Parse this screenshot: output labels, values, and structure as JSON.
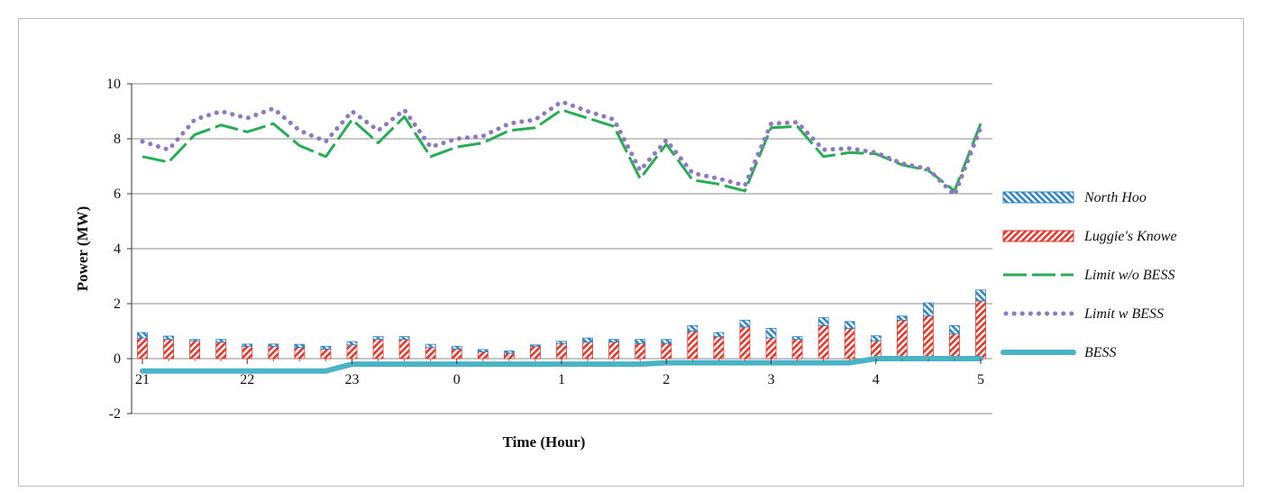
{
  "chart_data": {
    "type": "bar+line",
    "xlabel": "Time (Hour)",
    "ylabel": "Power (MW)",
    "ylim": [
      -2,
      10
    ],
    "yticks": [
      -2,
      0,
      2,
      4,
      6,
      8,
      10
    ],
    "xticks": [
      {
        "t": 0,
        "label": "21"
      },
      {
        "t": 1,
        "label": "22"
      },
      {
        "t": 2,
        "label": "23"
      },
      {
        "t": 3,
        "label": "0"
      },
      {
        "t": 4,
        "label": "1"
      },
      {
        "t": 5,
        "label": "2"
      },
      {
        "t": 6,
        "label": "3"
      },
      {
        "t": 7,
        "label": "4"
      },
      {
        "t": 8,
        "label": "5"
      }
    ],
    "xlim": [
      0,
      8
    ],
    "grid": true,
    "legend_position": "right",
    "colors": {
      "north_hoo": "#2f84c6",
      "luggies_knowe": "#e8362b",
      "limit_wo_bess": "#26ad55",
      "limit_w_bess": "#8e79c2",
      "bess": "#4bb3c6",
      "grid": "#8c8c8c"
    },
    "legend": [
      {
        "key": "north_hoo",
        "name": "North Hoo",
        "style": "hatch-blue"
      },
      {
        "key": "luggies_knowe",
        "name": "Luggie's Knowe",
        "style": "hatch-red"
      },
      {
        "key": "limit_wo_bess",
        "name": "Limit w/o BESS",
        "style": "dash"
      },
      {
        "key": "limit_w_bess",
        "name": "Limit w BESS",
        "style": "dot"
      },
      {
        "key": "bess",
        "name": "BESS",
        "style": "thick"
      }
    ],
    "time": [
      0,
      0.25,
      0.5,
      0.75,
      1,
      1.25,
      1.5,
      1.75,
      2,
      2.25,
      2.5,
      2.75,
      3,
      3.25,
      3.5,
      3.75,
      4,
      4.25,
      4.5,
      4.75,
      5,
      5.25,
      5.5,
      5.75,
      6,
      6.25,
      6.5,
      6.75,
      7,
      7.25,
      7.5,
      7.75,
      8
    ],
    "luggies_knowe": [
      0.75,
      0.7,
      0.65,
      0.6,
      0.45,
      0.45,
      0.4,
      0.35,
      0.5,
      0.7,
      0.7,
      0.4,
      0.35,
      0.25,
      0.2,
      0.45,
      0.55,
      0.6,
      0.6,
      0.55,
      0.55,
      1.0,
      0.8,
      1.15,
      0.75,
      0.7,
      1.2,
      1.1,
      0.65,
      1.4,
      1.55,
      0.9,
      2.1
    ],
    "north_hoo": [
      0.2,
      0.12,
      0.05,
      0.1,
      0.08,
      0.08,
      0.12,
      0.1,
      0.12,
      0.1,
      0.1,
      0.12,
      0.1,
      0.08,
      0.08,
      0.05,
      0.08,
      0.15,
      0.1,
      0.15,
      0.15,
      0.2,
      0.15,
      0.25,
      0.35,
      0.1,
      0.3,
      0.25,
      0.18,
      0.15,
      0.48,
      0.3,
      0.4
    ],
    "limit_wo_bess": [
      7.35,
      7.15,
      8.15,
      8.5,
      8.25,
      8.55,
      7.75,
      7.35,
      8.7,
      7.85,
      8.8,
      7.35,
      7.7,
      7.85,
      8.3,
      8.4,
      9.05,
      8.75,
      8.45,
      6.55,
      7.8,
      6.5,
      6.35,
      6.1,
      8.4,
      8.45,
      7.35,
      7.5,
      7.45,
      7.05,
      6.85,
      6.1,
      8.55
    ],
    "limit_w_bess": [
      7.9,
      7.6,
      8.7,
      9.0,
      8.75,
      9.1,
      8.3,
      7.9,
      9.0,
      8.3,
      9.05,
      7.7,
      8.0,
      8.1,
      8.55,
      8.7,
      9.35,
      9.0,
      8.7,
      6.85,
      7.95,
      6.75,
      6.55,
      6.3,
      8.55,
      8.6,
      7.6,
      7.65,
      7.5,
      7.1,
      6.9,
      5.95,
      8.4
    ],
    "bess": [
      -0.45,
      -0.45,
      -0.45,
      -0.45,
      -0.45,
      -0.45,
      -0.45,
      -0.45,
      -0.2,
      -0.2,
      -0.2,
      -0.2,
      -0.2,
      -0.2,
      -0.2,
      -0.2,
      -0.2,
      -0.2,
      -0.2,
      -0.2,
      -0.15,
      -0.15,
      -0.15,
      -0.15,
      -0.15,
      -0.15,
      -0.15,
      -0.15,
      0,
      0,
      0,
      0,
      0
    ]
  }
}
